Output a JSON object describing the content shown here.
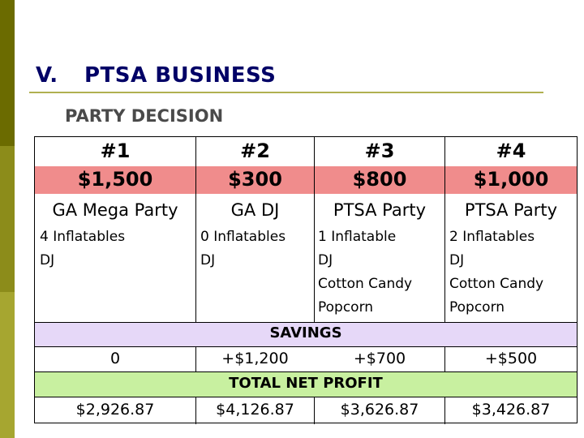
{
  "slide": {
    "section_number": "V.",
    "section_title": "PTSA BUSINESS",
    "subtitle": "PARTY DECISION"
  },
  "options": [
    {
      "number": "#1",
      "price": "$1,500",
      "name": "GA Mega Party",
      "features": [
        "4 Inflatables",
        "DJ"
      ],
      "savings": "0",
      "net_profit": "$2,926.87"
    },
    {
      "number": "#2",
      "price": "$300",
      "name": "GA DJ",
      "features": [
        "0 Inflatables",
        "DJ"
      ],
      "savings": "+$1,200",
      "net_profit": "$4,126.87"
    },
    {
      "number": "#3",
      "price": "$800",
      "name": "PTSA Party",
      "features": [
        "1 Inflatable",
        "DJ",
        "Cotton Candy",
        "Popcorn"
      ],
      "savings": "+$700",
      "net_profit": "$3,626.87"
    },
    {
      "number": "#4",
      "price": "$1,000",
      "name": "PTSA Party",
      "features": [
        "2 Inflatables",
        "DJ",
        "Cotton Candy",
        "Popcorn"
      ],
      "savings": "+$500",
      "net_profit": "$3,426.87"
    }
  ],
  "rows": {
    "savings_label": "SAVINGS",
    "net_profit_label": "TOTAL NET PROFIT"
  },
  "colors": {
    "price_band": "#f08c8c",
    "savings_band": "#e6d8f8",
    "profit_band": "#c8f0a0",
    "title_color": "#000066"
  }
}
